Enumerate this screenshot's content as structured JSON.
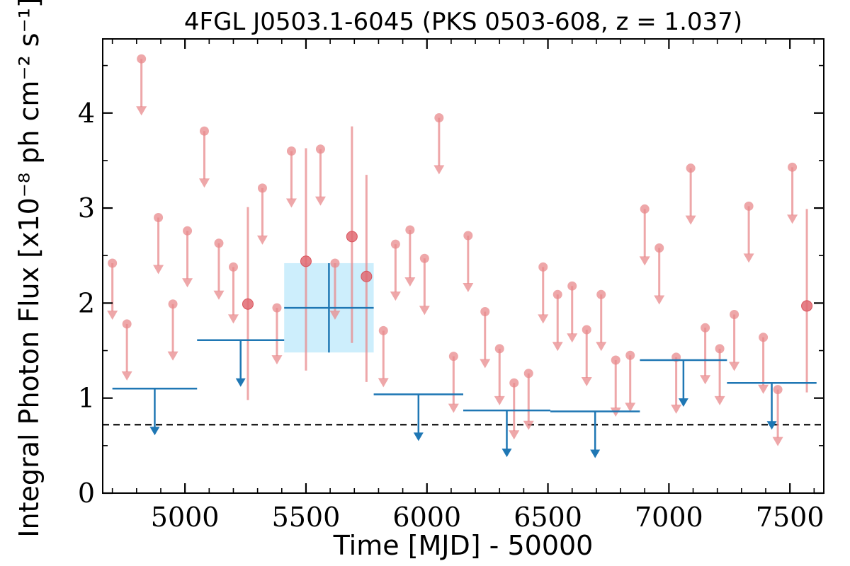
{
  "chart_data": {
    "type": "scatter",
    "title": "4FGL J0503.1-6045 (PKS 0503-608, z = 1.037)",
    "xlabel": "Time [MJD] - 50000",
    "ylabel": "Integral Photon Flux [x10⁻⁸ ph cm⁻² s⁻¹]",
    "xlim": [
      4660,
      7640
    ],
    "ylim": [
      0,
      4.78
    ],
    "x_ticks": [
      5000,
      5500,
      6000,
      6500,
      7000,
      7500
    ],
    "x_tick_labels": [
      "5000",
      "5500",
      "6000",
      "6500",
      "7000",
      "7500"
    ],
    "y_ticks": [
      0,
      1,
      2,
      3,
      4
    ],
    "y_tick_labels": [
      "0",
      "1",
      "2",
      "3",
      "4"
    ],
    "grid": false,
    "reference_line": {
      "y": 0.72,
      "style": "dashed",
      "color": "#000000"
    },
    "series": [
      {
        "style": "upper_limit",
        "color": "#e8898c",
        "points": [
          {
            "x": 4700,
            "y": 2.42
          },
          {
            "x": 4760,
            "y": 1.78
          },
          {
            "x": 4820,
            "y": 4.57
          },
          {
            "x": 4890,
            "y": 2.9
          },
          {
            "x": 4950,
            "y": 1.99
          },
          {
            "x": 5010,
            "y": 2.76
          },
          {
            "x": 5080,
            "y": 3.81
          },
          {
            "x": 5140,
            "y": 2.63
          },
          {
            "x": 5200,
            "y": 2.38
          },
          {
            "x": 5320,
            "y": 3.21
          },
          {
            "x": 5380,
            "y": 1.95
          },
          {
            "x": 5440,
            "y": 3.6
          },
          {
            "x": 5560,
            "y": 3.62
          },
          {
            "x": 5620,
            "y": 2.42
          },
          {
            "x": 5820,
            "y": 1.71
          },
          {
            "x": 5870,
            "y": 2.62
          },
          {
            "x": 5930,
            "y": 2.77
          },
          {
            "x": 5990,
            "y": 2.47
          },
          {
            "x": 6050,
            "y": 3.95
          },
          {
            "x": 6110,
            "y": 1.44
          },
          {
            "x": 6170,
            "y": 2.71
          },
          {
            "x": 6240,
            "y": 1.91
          },
          {
            "x": 6300,
            "y": 1.52
          },
          {
            "x": 6360,
            "y": 1.16
          },
          {
            "x": 6420,
            "y": 1.26
          },
          {
            "x": 6480,
            "y": 2.38
          },
          {
            "x": 6540,
            "y": 2.09
          },
          {
            "x": 6600,
            "y": 2.18
          },
          {
            "x": 6660,
            "y": 1.72
          },
          {
            "x": 6720,
            "y": 2.09
          },
          {
            "x": 6780,
            "y": 1.4
          },
          {
            "x": 6840,
            "y": 1.45
          },
          {
            "x": 6900,
            "y": 2.99
          },
          {
            "x": 6960,
            "y": 2.58
          },
          {
            "x": 7030,
            "y": 1.43
          },
          {
            "x": 7090,
            "y": 3.42
          },
          {
            "x": 7150,
            "y": 1.74
          },
          {
            "x": 7210,
            "y": 1.52
          },
          {
            "x": 7270,
            "y": 1.88
          },
          {
            "x": 7330,
            "y": 3.02
          },
          {
            "x": 7390,
            "y": 1.64
          },
          {
            "x": 7450,
            "y": 1.09
          },
          {
            "x": 7510,
            "y": 3.43
          }
        ]
      },
      {
        "style": "detection",
        "color": "#e8898c",
        "points": [
          {
            "x": 5260,
            "y": 1.99,
            "ylow": 0.98,
            "yhigh": 3.01
          },
          {
            "x": 5500,
            "y": 2.44,
            "ylow": 1.29,
            "yhigh": 3.63
          },
          {
            "x": 5690,
            "y": 2.7,
            "ylow": 1.58,
            "yhigh": 3.86
          },
          {
            "x": 5750,
            "y": 2.28,
            "ylow": 1.17,
            "yhigh": 3.35
          },
          {
            "x": 7570,
            "y": 1.97,
            "ylow": 1.06,
            "yhigh": 2.99
          }
        ]
      },
      {
        "style": "binned_upper_limit",
        "color": "#1f77b4",
        "bins": [
          {
            "x0": 4700,
            "x1": 5050,
            "y": 1.1
          },
          {
            "x0": 5050,
            "x1": 5410,
            "y": 1.61
          },
          {
            "x0": 5780,
            "x1": 6150,
            "y": 1.04
          },
          {
            "x0": 6150,
            "x1": 6510,
            "y": 0.87
          },
          {
            "x0": 6510,
            "x1": 6880,
            "y": 0.86
          },
          {
            "x0": 6880,
            "x1": 7240,
            "y": 1.4
          },
          {
            "x0": 7240,
            "x1": 7610,
            "y": 1.16
          }
        ]
      },
      {
        "style": "binned_detection",
        "color": "#1f77b4",
        "band_color": "#cdeefc",
        "points": [
          {
            "x0": 5410,
            "x1": 5780,
            "y": 1.95,
            "ylow": 1.48,
            "yhigh": 2.42
          }
        ]
      }
    ]
  }
}
